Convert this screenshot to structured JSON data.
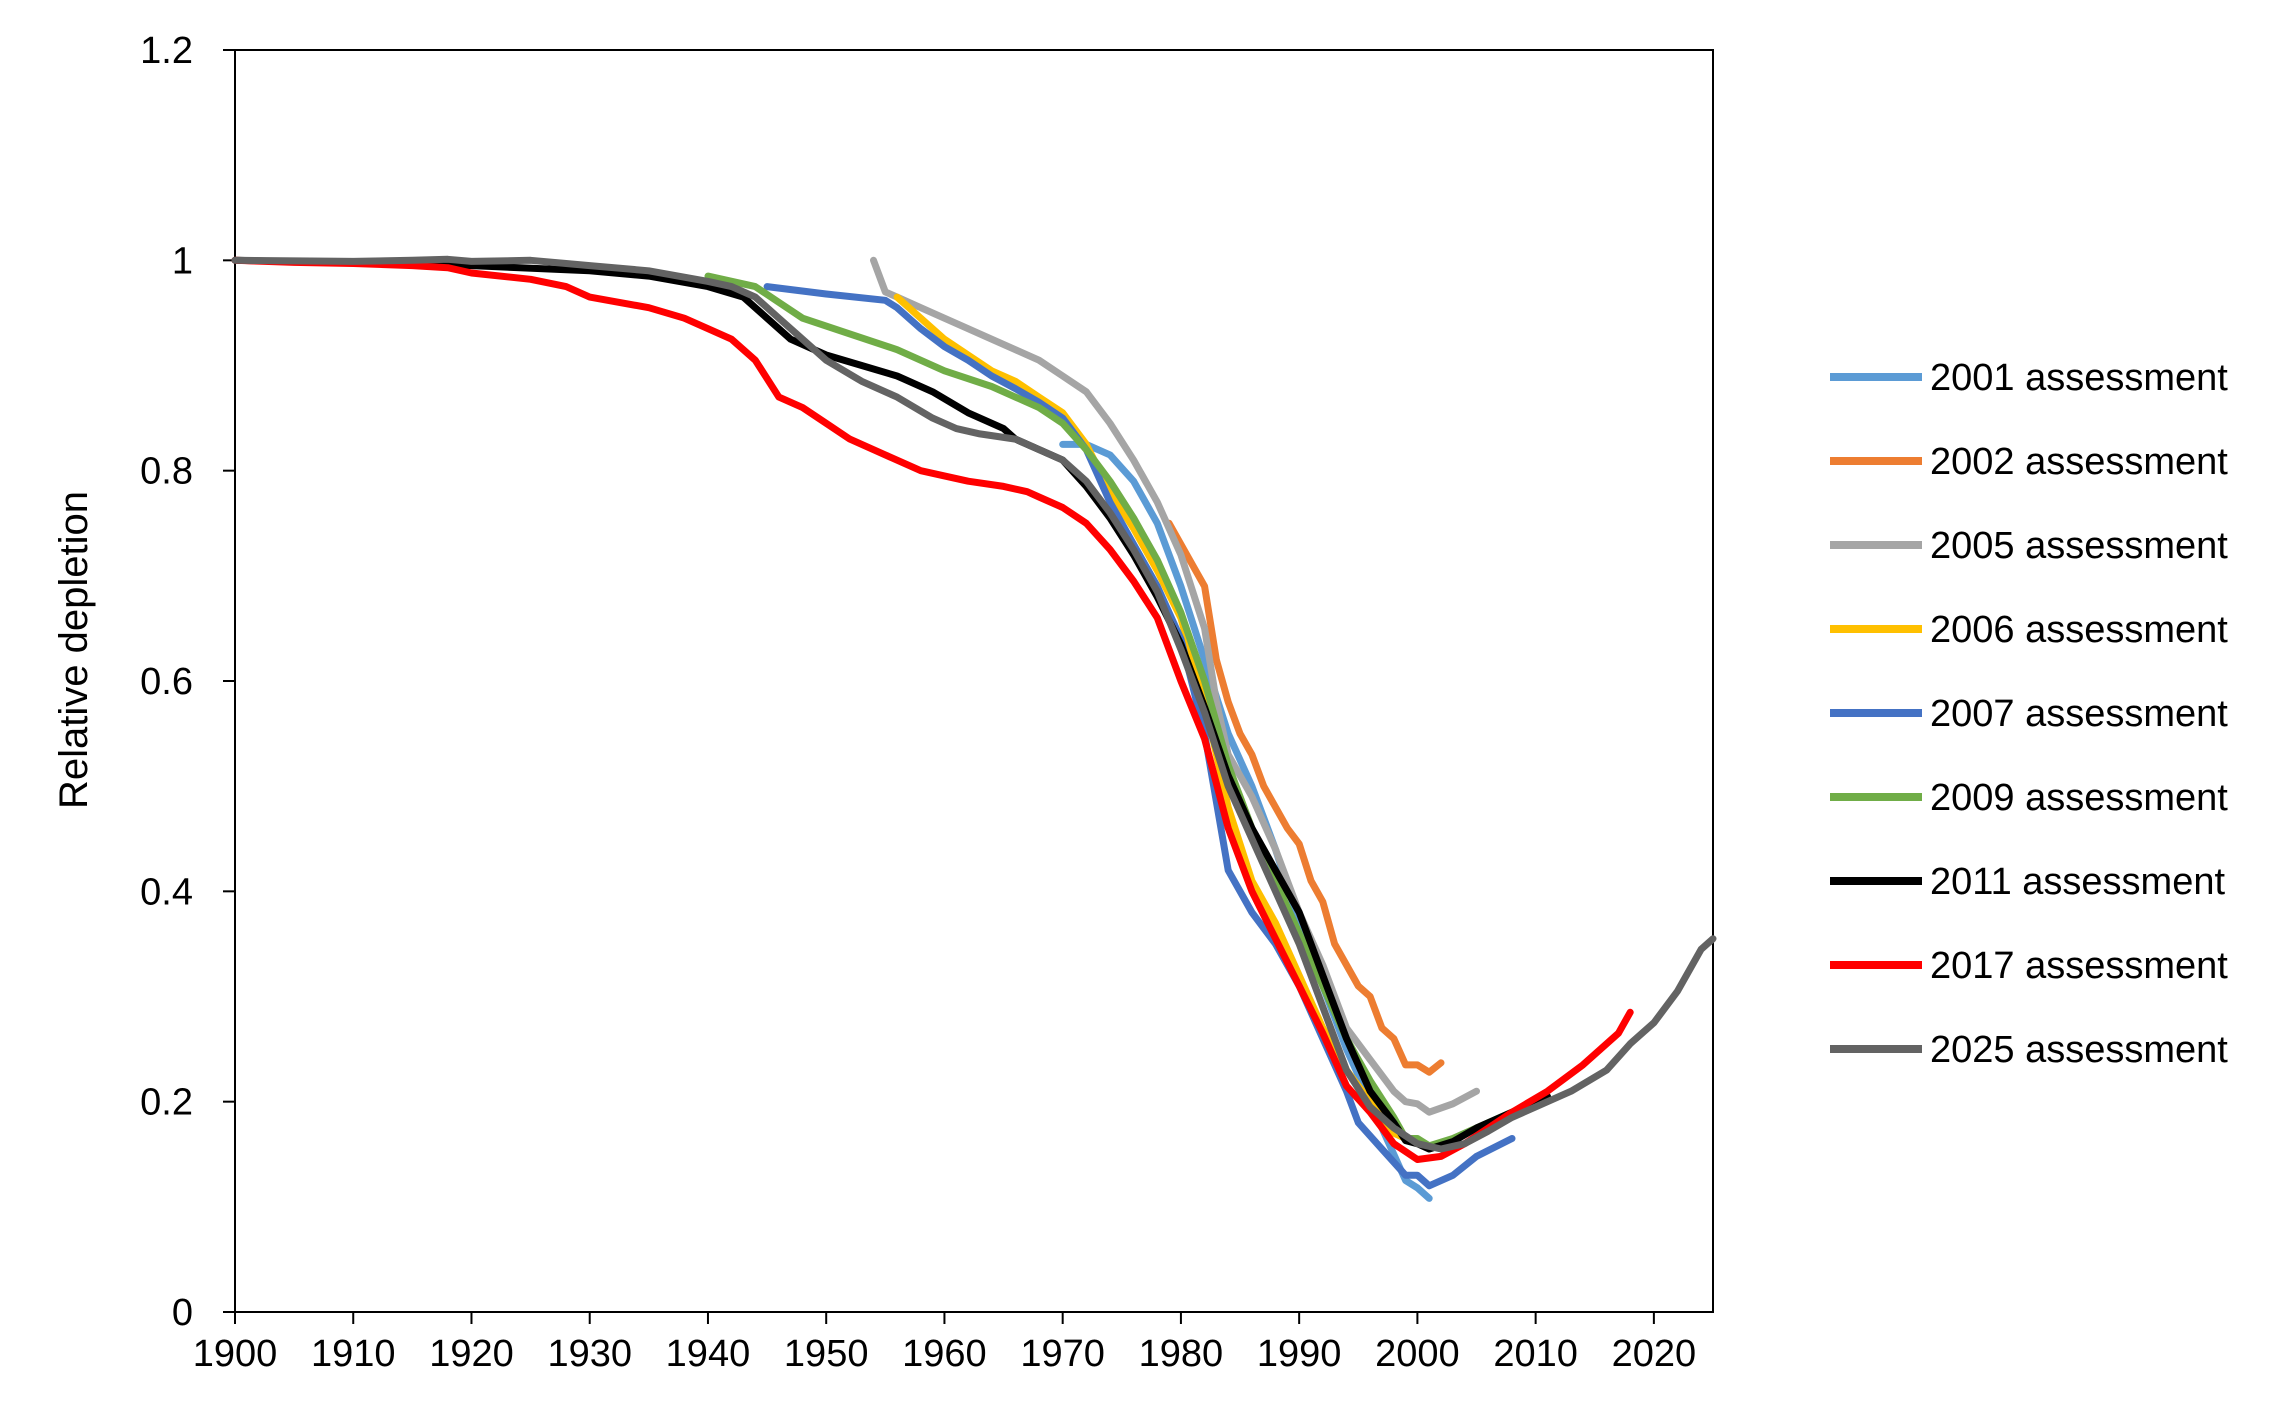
{
  "chart_data": {
    "type": "line",
    "title": "",
    "xlabel": "",
    "ylabel": "Relative depletion",
    "xlim": [
      1900,
      2025
    ],
    "ylim": [
      0,
      1.2
    ],
    "x_ticks": [
      "1900",
      "1910",
      "1920",
      "1930",
      "1940",
      "1950",
      "1960",
      "1970",
      "1980",
      "1990",
      "2000",
      "2010",
      "2020"
    ],
    "y_ticks": [
      "0",
      "0.2",
      "0.4",
      "0.6",
      "0.8",
      "1",
      "1.2"
    ],
    "grid": false,
    "legend_position": "right",
    "series": [
      {
        "name": "2001 assessment",
        "color": "#5B9BD5",
        "points": [
          [
            1970,
            0.825
          ],
          [
            1972,
            0.825
          ],
          [
            1974,
            0.815
          ],
          [
            1976,
            0.79
          ],
          [
            1978,
            0.75
          ],
          [
            1980,
            0.69
          ],
          [
            1982,
            0.62
          ],
          [
            1984,
            0.55
          ],
          [
            1986,
            0.5
          ],
          [
            1988,
            0.44
          ],
          [
            1990,
            0.37
          ],
          [
            1992,
            0.31
          ],
          [
            1994,
            0.25
          ],
          [
            1996,
            0.2
          ],
          [
            1998,
            0.15
          ],
          [
            1999,
            0.125
          ],
          [
            2000,
            0.118
          ],
          [
            2001,
            0.108
          ]
        ]
      },
      {
        "name": "2002 assessment",
        "color": "#ED7D31",
        "points": [
          [
            1979,
            0.75
          ],
          [
            1980,
            0.73
          ],
          [
            1981,
            0.71
          ],
          [
            1982,
            0.69
          ],
          [
            1983,
            0.62
          ],
          [
            1984,
            0.58
          ],
          [
            1985,
            0.55
          ],
          [
            1986,
            0.53
          ],
          [
            1987,
            0.5
          ],
          [
            1988,
            0.48
          ],
          [
            1989,
            0.46
          ],
          [
            1990,
            0.445
          ],
          [
            1991,
            0.41
          ],
          [
            1992,
            0.39
          ],
          [
            1993,
            0.35
          ],
          [
            1995,
            0.31
          ],
          [
            1996,
            0.3
          ],
          [
            1997,
            0.27
          ],
          [
            1998,
            0.26
          ],
          [
            1999,
            0.235
          ],
          [
            2000,
            0.235
          ],
          [
            2001,
            0.228
          ],
          [
            2002,
            0.237
          ]
        ]
      },
      {
        "name": "2005 assessment",
        "color": "#A5A5A5",
        "points": [
          [
            1954,
            1.0
          ],
          [
            1955,
            0.97
          ],
          [
            1956,
            0.965
          ],
          [
            1958,
            0.955
          ],
          [
            1960,
            0.945
          ],
          [
            1962,
            0.935
          ],
          [
            1964,
            0.925
          ],
          [
            1966,
            0.915
          ],
          [
            1968,
            0.905
          ],
          [
            1970,
            0.89
          ],
          [
            1972,
            0.875
          ],
          [
            1974,
            0.845
          ],
          [
            1976,
            0.81
          ],
          [
            1978,
            0.77
          ],
          [
            1980,
            0.72
          ],
          [
            1982,
            0.65
          ],
          [
            1983,
            0.58
          ],
          [
            1984,
            0.53
          ],
          [
            1986,
            0.49
          ],
          [
            1988,
            0.44
          ],
          [
            1990,
            0.38
          ],
          [
            1992,
            0.33
          ],
          [
            1994,
            0.27
          ],
          [
            1996,
            0.24
          ],
          [
            1998,
            0.21
          ],
          [
            1999,
            0.2
          ],
          [
            2000,
            0.198
          ],
          [
            2001,
            0.19
          ],
          [
            2003,
            0.198
          ],
          [
            2005,
            0.21
          ]
        ]
      },
      {
        "name": "2006 assessment",
        "color": "#FFC000",
        "points": [
          [
            1956,
            0.965
          ],
          [
            1958,
            0.945
          ],
          [
            1960,
            0.925
          ],
          [
            1962,
            0.91
          ],
          [
            1964,
            0.895
          ],
          [
            1966,
            0.885
          ],
          [
            1968,
            0.87
          ],
          [
            1970,
            0.855
          ],
          [
            1972,
            0.825
          ],
          [
            1974,
            0.78
          ],
          [
            1976,
            0.745
          ],
          [
            1978,
            0.705
          ],
          [
            1980,
            0.66
          ],
          [
            1982,
            0.58
          ],
          [
            1984,
            0.48
          ],
          [
            1986,
            0.41
          ],
          [
            1988,
            0.37
          ],
          [
            1990,
            0.32
          ],
          [
            1992,
            0.27
          ],
          [
            1994,
            0.23
          ],
          [
            1996,
            0.2
          ],
          [
            1998,
            0.17
          ],
          [
            2000,
            0.16
          ]
        ]
      },
      {
        "name": "2007 assessment",
        "color": "#4472C4",
        "points": [
          [
            1945,
            0.975
          ],
          [
            1950,
            0.968
          ],
          [
            1955,
            0.962
          ],
          [
            1956,
            0.955
          ],
          [
            1958,
            0.935
          ],
          [
            1960,
            0.918
          ],
          [
            1962,
            0.905
          ],
          [
            1964,
            0.89
          ],
          [
            1966,
            0.878
          ],
          [
            1968,
            0.865
          ],
          [
            1970,
            0.85
          ],
          [
            1972,
            0.82
          ],
          [
            1974,
            0.77
          ],
          [
            1976,
            0.73
          ],
          [
            1978,
            0.69
          ],
          [
            1980,
            0.64
          ],
          [
            1982,
            0.55
          ],
          [
            1984,
            0.42
          ],
          [
            1986,
            0.38
          ],
          [
            1988,
            0.35
          ],
          [
            1990,
            0.31
          ],
          [
            1992,
            0.26
          ],
          [
            1994,
            0.21
          ],
          [
            1995,
            0.18
          ],
          [
            1997,
            0.155
          ],
          [
            1999,
            0.13
          ],
          [
            2000,
            0.13
          ],
          [
            2001,
            0.12
          ],
          [
            2003,
            0.13
          ],
          [
            2005,
            0.148
          ],
          [
            2008,
            0.165
          ]
        ]
      },
      {
        "name": "2009 assessment",
        "color": "#70AD47",
        "points": [
          [
            1940,
            0.985
          ],
          [
            1944,
            0.975
          ],
          [
            1946,
            0.96
          ],
          [
            1948,
            0.945
          ],
          [
            1952,
            0.93
          ],
          [
            1956,
            0.915
          ],
          [
            1960,
            0.895
          ],
          [
            1964,
            0.88
          ],
          [
            1968,
            0.86
          ],
          [
            1970,
            0.845
          ],
          [
            1972,
            0.82
          ],
          [
            1974,
            0.79
          ],
          [
            1976,
            0.755
          ],
          [
            1978,
            0.715
          ],
          [
            1980,
            0.665
          ],
          [
            1982,
            0.6
          ],
          [
            1984,
            0.52
          ],
          [
            1986,
            0.46
          ],
          [
            1988,
            0.41
          ],
          [
            1990,
            0.36
          ],
          [
            1992,
            0.31
          ],
          [
            1994,
            0.26
          ],
          [
            1996,
            0.22
          ],
          [
            1998,
            0.185
          ],
          [
            1999,
            0.165
          ],
          [
            2000,
            0.165
          ],
          [
            2001,
            0.158
          ],
          [
            2003,
            0.165
          ],
          [
            2005,
            0.175
          ],
          [
            2008,
            0.19
          ]
        ]
      },
      {
        "name": "2011 assessment",
        "color": "#000000",
        "points": [
          [
            1900,
            1.0
          ],
          [
            1920,
            0.995
          ],
          [
            1930,
            0.99
          ],
          [
            1935,
            0.985
          ],
          [
            1940,
            0.975
          ],
          [
            1943,
            0.965
          ],
          [
            1945,
            0.945
          ],
          [
            1947,
            0.925
          ],
          [
            1950,
            0.91
          ],
          [
            1953,
            0.9
          ],
          [
            1956,
            0.89
          ],
          [
            1959,
            0.875
          ],
          [
            1962,
            0.855
          ],
          [
            1965,
            0.84
          ],
          [
            1966,
            0.83
          ],
          [
            1968,
            0.82
          ],
          [
            1970,
            0.81
          ],
          [
            1972,
            0.785
          ],
          [
            1974,
            0.755
          ],
          [
            1976,
            0.72
          ],
          [
            1978,
            0.68
          ],
          [
            1980,
            0.635
          ],
          [
            1982,
            0.575
          ],
          [
            1984,
            0.51
          ],
          [
            1986,
            0.46
          ],
          [
            1988,
            0.42
          ],
          [
            1990,
            0.38
          ],
          [
            1992,
            0.32
          ],
          [
            1994,
            0.26
          ],
          [
            1996,
            0.21
          ],
          [
            1998,
            0.18
          ],
          [
            1999,
            0.163
          ],
          [
            2000,
            0.16
          ],
          [
            2001,
            0.155
          ],
          [
            2003,
            0.162
          ],
          [
            2005,
            0.175
          ],
          [
            2008,
            0.19
          ],
          [
            2011,
            0.205
          ]
        ]
      },
      {
        "name": "2017 assessment",
        "color": "#FF0000",
        "points": [
          [
            1900,
            1.0
          ],
          [
            1905,
            0.998
          ],
          [
            1910,
            0.997
          ],
          [
            1915,
            0.995
          ],
          [
            1918,
            0.993
          ],
          [
            1920,
            0.988
          ],
          [
            1925,
            0.982
          ],
          [
            1928,
            0.975
          ],
          [
            1930,
            0.965
          ],
          [
            1935,
            0.955
          ],
          [
            1938,
            0.945
          ],
          [
            1940,
            0.935
          ],
          [
            1942,
            0.925
          ],
          [
            1944,
            0.905
          ],
          [
            1946,
            0.87
          ],
          [
            1948,
            0.86
          ],
          [
            1950,
            0.845
          ],
          [
            1952,
            0.83
          ],
          [
            1955,
            0.815
          ],
          [
            1958,
            0.8
          ],
          [
            1960,
            0.795
          ],
          [
            1962,
            0.79
          ],
          [
            1965,
            0.785
          ],
          [
            1967,
            0.78
          ],
          [
            1968,
            0.775
          ],
          [
            1970,
            0.765
          ],
          [
            1972,
            0.75
          ],
          [
            1974,
            0.725
          ],
          [
            1976,
            0.695
          ],
          [
            1978,
            0.66
          ],
          [
            1980,
            0.6
          ],
          [
            1982,
            0.545
          ],
          [
            1984,
            0.46
          ],
          [
            1986,
            0.4
          ],
          [
            1988,
            0.355
          ],
          [
            1990,
            0.31
          ],
          [
            1992,
            0.265
          ],
          [
            1994,
            0.215
          ],
          [
            1996,
            0.19
          ],
          [
            1998,
            0.16
          ],
          [
            2000,
            0.145
          ],
          [
            2002,
            0.148
          ],
          [
            2004,
            0.16
          ],
          [
            2006,
            0.175
          ],
          [
            2008,
            0.19
          ],
          [
            2011,
            0.21
          ],
          [
            2014,
            0.235
          ],
          [
            2017,
            0.265
          ],
          [
            2018,
            0.285
          ]
        ]
      },
      {
        "name": "2025 assessment",
        "color": "#636363",
        "points": [
          [
            1900,
            1.0
          ],
          [
            1910,
            0.999
          ],
          [
            1915,
            1.0
          ],
          [
            1918,
            1.001
          ],
          [
            1920,
            0.999
          ],
          [
            1925,
            1.0
          ],
          [
            1928,
            0.997
          ],
          [
            1930,
            0.995
          ],
          [
            1935,
            0.99
          ],
          [
            1940,
            0.98
          ],
          [
            1942,
            0.975
          ],
          [
            1944,
            0.965
          ],
          [
            1946,
            0.945
          ],
          [
            1948,
            0.925
          ],
          [
            1950,
            0.905
          ],
          [
            1953,
            0.885
          ],
          [
            1956,
            0.87
          ],
          [
            1959,
            0.85
          ],
          [
            1961,
            0.84
          ],
          [
            1963,
            0.835
          ],
          [
            1966,
            0.83
          ],
          [
            1968,
            0.82
          ],
          [
            1970,
            0.81
          ],
          [
            1972,
            0.79
          ],
          [
            1974,
            0.76
          ],
          [
            1976,
            0.725
          ],
          [
            1978,
            0.685
          ],
          [
            1980,
            0.63
          ],
          [
            1982,
            0.57
          ],
          [
            1984,
            0.5
          ],
          [
            1986,
            0.45
          ],
          [
            1988,
            0.4
          ],
          [
            1990,
            0.35
          ],
          [
            1992,
            0.29
          ],
          [
            1994,
            0.23
          ],
          [
            1996,
            0.195
          ],
          [
            1998,
            0.175
          ],
          [
            2000,
            0.16
          ],
          [
            2002,
            0.155
          ],
          [
            2004,
            0.16
          ],
          [
            2006,
            0.172
          ],
          [
            2008,
            0.185
          ],
          [
            2010,
            0.195
          ],
          [
            2013,
            0.21
          ],
          [
            2016,
            0.23
          ],
          [
            2018,
            0.255
          ],
          [
            2020,
            0.275
          ],
          [
            2022,
            0.305
          ],
          [
            2024,
            0.345
          ],
          [
            2025,
            0.355
          ]
        ]
      }
    ]
  }
}
